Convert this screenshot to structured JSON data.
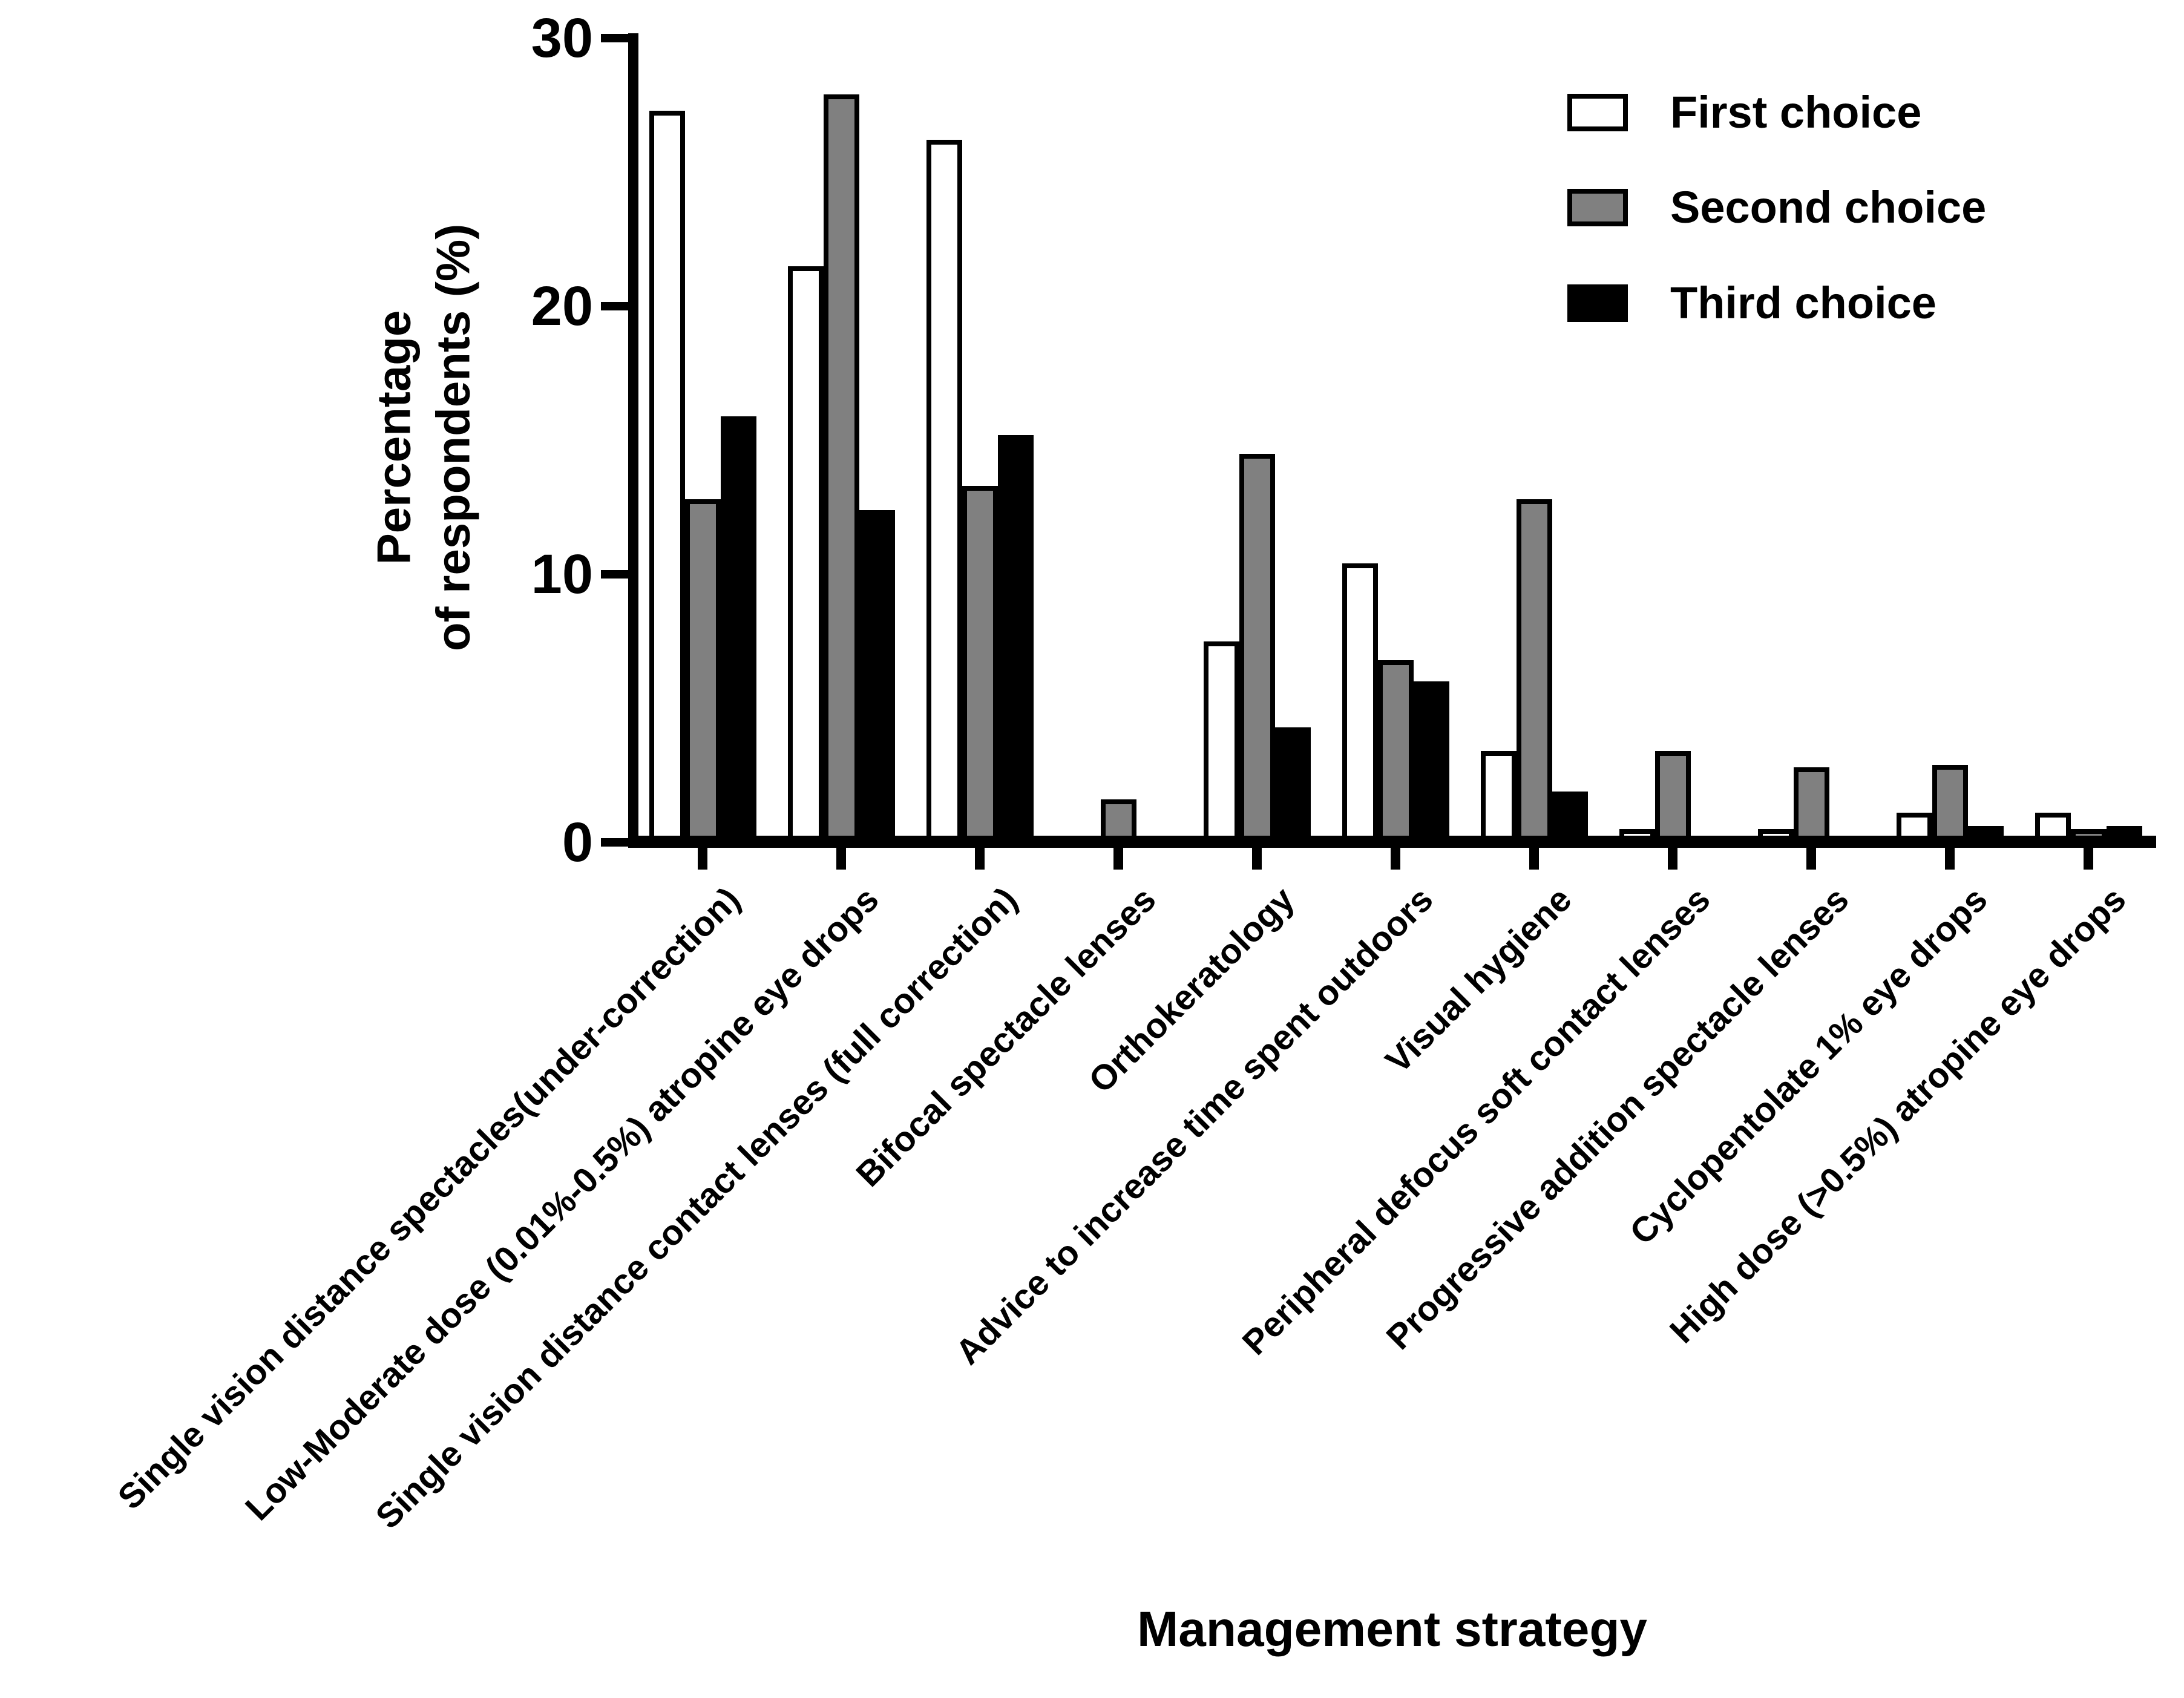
{
  "axes": {
    "x_title": "Management strategy",
    "y_title_line1": "Percentage",
    "y_title_line2": "of respondents (%)"
  },
  "chart_data": {
    "type": "bar",
    "title": "",
    "xlabel": "Management strategy",
    "ylabel": "Percentage of respondents (%)",
    "ylim": [
      0,
      30
    ],
    "yticks": [
      0,
      10,
      20,
      30
    ],
    "grid": false,
    "legend_position": "upper right",
    "bar_outline_color": "#000000",
    "background_color": "#ffffff",
    "categories": [
      "Single vision distance spectacles(under-correction)",
      "Low-Moderate dose (0.01%-0.5%) atropine eye drops",
      "Single vision distance contact lenses (full correction)",
      "Bifocal spectacle lenses",
      "Orthokeratology",
      "Advice to increase time spent outdoors",
      "Visual hygiene",
      "Peripheral defocus soft contact lenses",
      "Progressive addition spectacle lenses",
      "Cyclopentolate 1% eye drops",
      "High dose (>0.5%) atropine eye drops"
    ],
    "series": [
      {
        "name": "First choice",
        "color": "#ffffff",
        "values": [
          27.3,
          21.5,
          26.2,
          0,
          7.5,
          10.4,
          3.4,
          0.5,
          0.5,
          1.1,
          1.1
        ]
      },
      {
        "name": "Second choice",
        "color": "#808080",
        "values": [
          12.8,
          27.9,
          13.3,
          1.6,
          14.5,
          6.8,
          12.8,
          3.4,
          2.8,
          2.9,
          0.5
        ]
      },
      {
        "name": "Third choice",
        "color": "#000000",
        "values": [
          15.9,
          12.4,
          15.2,
          0,
          4.3,
          6.0,
          1.9,
          0.2,
          0.2,
          0.6,
          0.6
        ]
      }
    ]
  }
}
